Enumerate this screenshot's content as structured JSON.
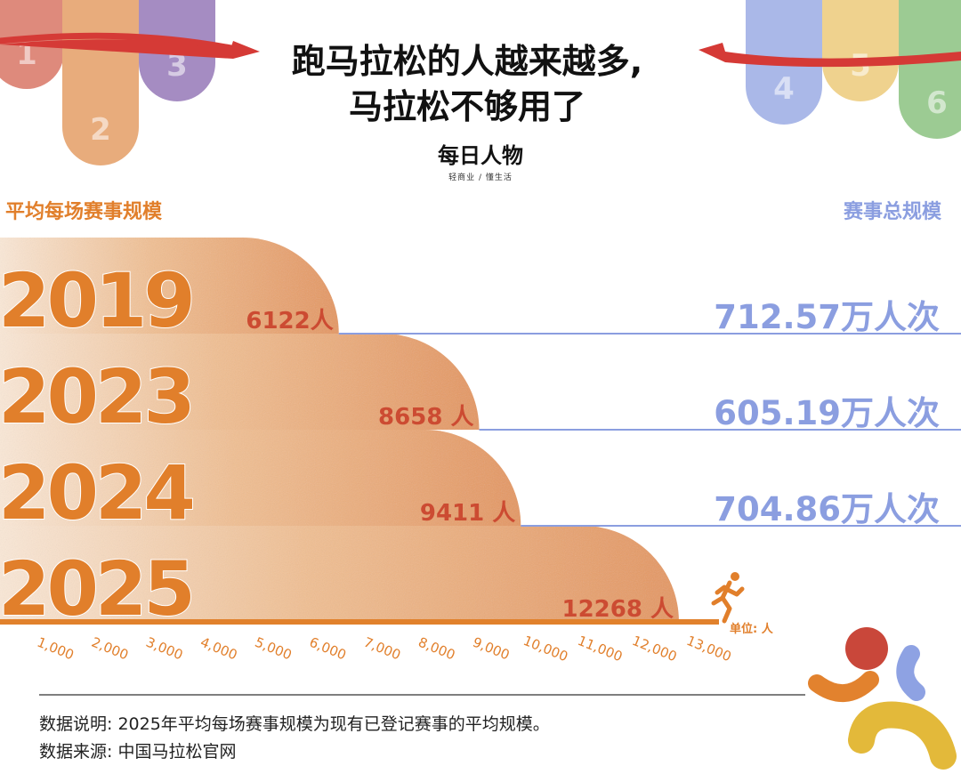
{
  "header": {
    "title_line1": "跑马拉松的人越来越多,",
    "title_line2": "马拉松不够用了",
    "brand": "每日人物",
    "brand_tagline": "轻商业 / 懂生活"
  },
  "tabs_left": [
    {
      "number": "1",
      "color": "#de8a7c"
    },
    {
      "number": "2",
      "color": "#e8ac7c"
    },
    {
      "number": "3",
      "color": "#a58cc2"
    }
  ],
  "tabs_right": [
    {
      "number": "4",
      "color": "#aab8e8"
    },
    {
      "number": "5",
      "color": "#efd28e"
    },
    {
      "number": "6",
      "color": "#9ccb93"
    }
  ],
  "colors": {
    "accent_orange": "#e17f2b",
    "bar_red_text": "#cc4b32",
    "total_blue": "#8b9ee0",
    "ribbon_red": "#d53a36",
    "baseline": "#e1812c"
  },
  "chart_data": {
    "type": "bar",
    "orientation": "horizontal",
    "left_heading": "平均每场赛事规模",
    "right_heading": "赛事总规模",
    "categories": [
      "2019",
      "2023",
      "2024",
      "2025"
    ],
    "series": [
      {
        "name": "平均每场赛事规模",
        "values": [
          6122,
          8658,
          9411,
          12268
        ],
        "labels": [
          "6122人",
          "8658 人",
          "9411 人",
          "12268 人"
        ]
      },
      {
        "name": "赛事总规模",
        "values": [
          712.57,
          605.19,
          704.86,
          null
        ],
        "labels": [
          "712.57万人次",
          "605.19万人次",
          "704.86万人次",
          ""
        ]
      }
    ],
    "x_ticks": [
      "1,000",
      "2,000",
      "3,000",
      "4,000",
      "5,000",
      "6,000",
      "7,000",
      "8,000",
      "9,000",
      "10,000",
      "11,000",
      "12,000",
      "13,000"
    ],
    "x_tick_values": [
      1000,
      2000,
      3000,
      4000,
      5000,
      6000,
      7000,
      8000,
      9000,
      10000,
      11000,
      12000,
      13000
    ],
    "xlim": [
      0,
      13000
    ],
    "unit": "单位: 人",
    "grid": false
  },
  "footer": {
    "note": "数据说明: 2025年平均每场赛事规模为现有已登记赛事的平均规模。",
    "source": "数据来源: 中国马拉松官网"
  },
  "decor": {
    "runner_icon": "runner-icon",
    "figure_icon": "abstract-person-logo-icon"
  }
}
